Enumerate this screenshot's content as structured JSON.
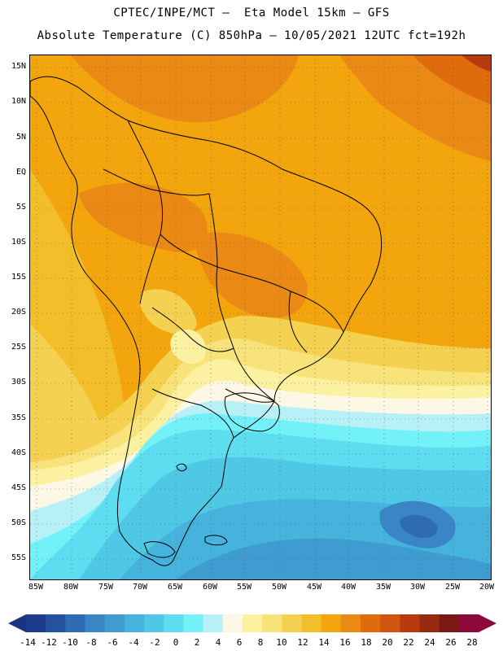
{
  "title_line1": "CPTEC/INPE/MCT –  Eta Model 15km – GFS",
  "title_line2": "Absolute Temperature (C) 850hPa – 10/05/2021 12UTC fct=192h",
  "lat_labels": [
    "15N",
    "10N",
    "5N",
    "EQ",
    "5S",
    "10S",
    "15S",
    "20S",
    "25S",
    "30S",
    "35S",
    "40S",
    "45S",
    "50S",
    "55S"
  ],
  "lon_labels": [
    "85W",
    "80W",
    "75W",
    "70W",
    "65W",
    "60W",
    "55W",
    "50W",
    "45W",
    "40W",
    "35W",
    "30W",
    "25W",
    "20W"
  ],
  "colorbar": {
    "labels": [
      "-14",
      "-12",
      "-10",
      "-8",
      "-6",
      "-4",
      "-2",
      "0",
      "2",
      "4",
      "6",
      "8",
      "10",
      "12",
      "14",
      "16",
      "18",
      "20",
      "22",
      "24",
      "26",
      "28"
    ],
    "colors": [
      "#1e3c8c",
      "#2653a0",
      "#2f6bb3",
      "#3a85c4",
      "#3f9cd0",
      "#45b3dc",
      "#4fc8e6",
      "#5edcf0",
      "#72f2f8",
      "#b8f0f8",
      "#fdf8e6",
      "#fbf1a0",
      "#f8e27a",
      "#f5d152",
      "#f2be2a",
      "#f2a50d",
      "#ea8a14",
      "#e06b0c",
      "#d35410",
      "#b83a0e",
      "#982a12",
      "#7a1a12",
      "#8e0a3a"
    ],
    "under_color": "#1a3480",
    "over_color": "#8e0a3a"
  },
  "icons": {
    "colorbar_left_arrow": "triangle-left-icon",
    "colorbar_right_arrow": "triangle-right-icon"
  }
}
